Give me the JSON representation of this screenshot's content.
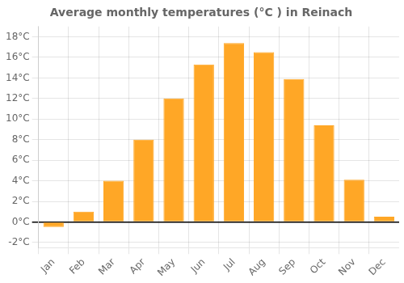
{
  "chart_data": {
    "type": "bar",
    "title": "Average monthly temperatures (°C ) in Reinach",
    "categories": [
      "Jan",
      "Feb",
      "Mar",
      "Apr",
      "May",
      "Jun",
      "Jul",
      "Aug",
      "Sep",
      "Oct",
      "Nov",
      "Dec"
    ],
    "values": [
      -0.5,
      1.0,
      4.0,
      8.0,
      12.0,
      15.3,
      17.4,
      16.5,
      13.9,
      9.4,
      4.1,
      0.5
    ],
    "color": "#FFA726",
    "ylim": [
      -2.5,
      19.0
    ],
    "yticks": [
      {
        "value": -2,
        "label": "-2°C"
      },
      {
        "value": 0,
        "label": "0°C"
      },
      {
        "value": 2,
        "label": "2°C"
      },
      {
        "value": 4,
        "label": "4°C"
      },
      {
        "value": 6,
        "label": "6°C"
      },
      {
        "value": 8,
        "label": "8°C"
      },
      {
        "value": 10,
        "label": "10°C"
      },
      {
        "value": 12,
        "label": "12°C"
      },
      {
        "value": 14,
        "label": "14°C"
      },
      {
        "value": 16,
        "label": "16°C"
      },
      {
        "value": 18,
        "label": "18°C"
      }
    ],
    "grid": true
  }
}
